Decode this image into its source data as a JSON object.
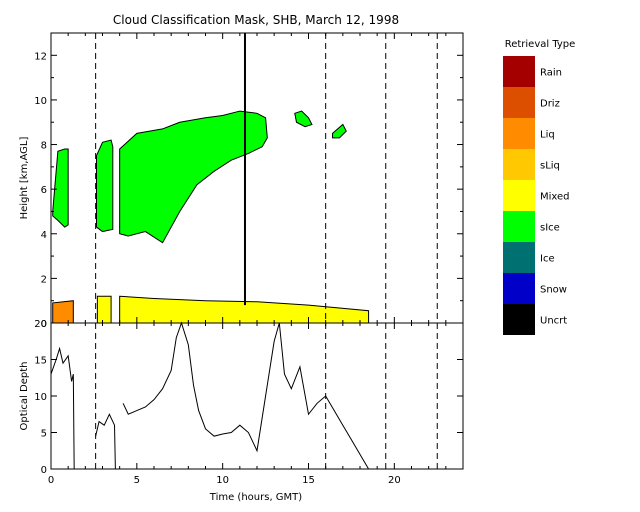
{
  "chart_data": [
    {
      "type": "heatmap",
      "title": "Cloud Classification Mask, SHB, March 12, 1998",
      "xlabel": "",
      "ylabel": "Height [km,AGL]",
      "xlim": [
        0,
        24
      ],
      "ylim": [
        0,
        13
      ],
      "y_ticks": [
        "0",
        "2",
        "4",
        "6",
        "8",
        "10",
        "12"
      ],
      "vertical_lines_dashed": [
        2.6,
        16.0,
        19.5,
        22.5
      ],
      "vertical_line_solid": 11.3,
      "layers": [
        {
          "class": "sIce",
          "x": [
            0.1,
            0.4,
            0.8,
            1.0,
            1.0,
            0.8,
            0.4,
            0.1
          ],
          "y": [
            5.0,
            7.7,
            7.8,
            7.8,
            4.4,
            4.3,
            4.6,
            4.8
          ]
        },
        {
          "class": "sIce",
          "x": [
            2.65,
            3.0,
            3.5,
            3.6,
            3.6,
            3.0,
            2.65
          ],
          "y": [
            7.5,
            8.1,
            8.2,
            7.9,
            4.2,
            4.1,
            4.3
          ]
        },
        {
          "class": "sIce",
          "x": [
            4.0,
            5.0,
            6.5,
            7.5,
            9.0,
            10.0,
            11.0,
            12.0,
            12.5,
            12.6,
            12.3,
            11.5,
            10.5,
            9.5,
            8.5,
            7.5,
            6.5,
            5.5,
            4.5,
            4.0
          ],
          "y": [
            7.8,
            8.5,
            8.7,
            9.0,
            9.2,
            9.3,
            9.5,
            9.4,
            9.2,
            8.3,
            7.9,
            7.6,
            7.3,
            6.8,
            6.2,
            5.0,
            3.6,
            4.1,
            3.9,
            4.0
          ]
        },
        {
          "class": "sIce",
          "x": [
            14.2,
            14.6,
            15.0,
            15.2,
            14.8,
            14.3
          ],
          "y": [
            9.4,
            9.5,
            9.2,
            8.9,
            8.8,
            9.0
          ]
        },
        {
          "class": "sIce",
          "x": [
            16.4,
            16.7,
            17.0,
            17.2,
            16.8,
            16.4
          ],
          "y": [
            8.5,
            8.7,
            8.9,
            8.6,
            8.3,
            8.3
          ]
        },
        {
          "class": "Liq",
          "x": [
            0.1,
            1.3,
            1.3,
            0.1
          ],
          "y": [
            0.0,
            0.0,
            1.0,
            0.9
          ]
        },
        {
          "class": "Mixed",
          "x": [
            2.7,
            3.5,
            3.5,
            2.7
          ],
          "y": [
            0.0,
            0.0,
            1.2,
            1.2
          ]
        },
        {
          "class": "Mixed",
          "x": [
            4.0,
            6.0,
            9.0,
            12.0,
            15.0,
            18.5,
            18.5,
            4.0
          ],
          "y": [
            1.2,
            1.1,
            1.0,
            0.95,
            0.8,
            0.55,
            0.0,
            0.0
          ]
        }
      ]
    },
    {
      "type": "line",
      "xlabel": "Time (hours, GMT)",
      "ylabel": "Optical Depth",
      "xlim": [
        0,
        24
      ],
      "ylim": [
        0,
        20
      ],
      "x_ticks": [
        "0",
        "5",
        "10",
        "15",
        "20"
      ],
      "y_ticks": [
        "0",
        "5",
        "10",
        "15",
        "20"
      ],
      "series": [
        {
          "x": [
            0.0,
            0.3,
            0.5,
            0.7,
            1.0,
            1.2,
            1.3,
            1.35
          ],
          "y": [
            13.0,
            15.0,
            16.5,
            14.5,
            15.5,
            12.0,
            13.0,
            0.0
          ]
        },
        {
          "x": [
            2.6,
            2.8,
            3.1,
            3.4,
            3.7,
            3.75
          ],
          "y": [
            4.5,
            6.5,
            6.0,
            7.5,
            6.0,
            0.0
          ]
        },
        {
          "x": [
            4.2,
            4.5,
            5.0,
            5.5,
            6.0,
            6.5,
            7.0,
            7.3,
            7.6,
            8.0,
            8.3,
            8.6,
            9.0,
            9.5,
            10.0,
            10.5,
            11.0,
            11.5,
            11.8,
            12.0,
            12.5,
            13.0,
            13.3,
            13.6,
            14.0,
            14.5,
            15.0,
            15.5,
            16.0,
            16.5,
            17.0,
            17.5,
            18.0,
            18.5
          ],
          "y": [
            9.0,
            7.5,
            8.0,
            8.5,
            9.5,
            11.0,
            13.5,
            18.0,
            20.0,
            17.0,
            11.5,
            8.0,
            5.5,
            4.5,
            4.8,
            5.0,
            6.0,
            5.0,
            3.5,
            2.5,
            10.0,
            17.5,
            20.0,
            13.0,
            11.0,
            14.0,
            7.5,
            9.0,
            10.0,
            8.0,
            6.0,
            4.0,
            2.0,
            0.0
          ]
        }
      ]
    }
  ],
  "legend": {
    "title": "Retrieval Type",
    "items": [
      {
        "label": "Rain",
        "color": "#a40000"
      },
      {
        "label": "Driz",
        "color": "#dc4e00"
      },
      {
        "label": "Liq",
        "color": "#ff8c00"
      },
      {
        "label": "sLiq",
        "color": "#ffc800"
      },
      {
        "label": "Mixed",
        "color": "#ffff00"
      },
      {
        "label": "sIce",
        "color": "#00ff00"
      },
      {
        "label": "Ice",
        "color": "#007070"
      },
      {
        "label": "Snow",
        "color": "#0000c8"
      },
      {
        "label": "Uncrt",
        "color": "#000000"
      }
    ]
  }
}
